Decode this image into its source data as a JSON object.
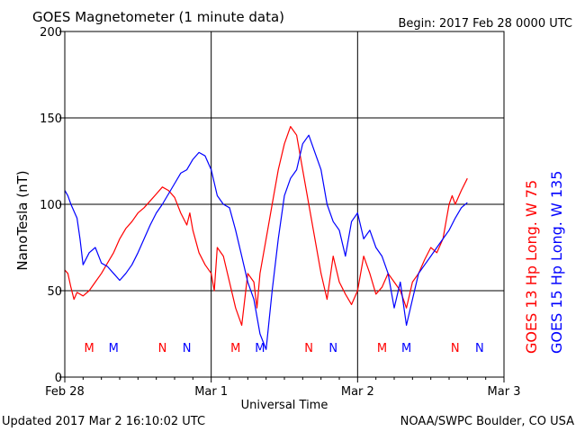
{
  "header": {
    "title": "GOES Magnetometer (1 minute data)",
    "begin": "Begin:  2017 Feb 28 0000 UTC"
  },
  "footer": {
    "updated": "Updated 2017 Mar  2 16:10:02 UTC",
    "credit": "NOAA/SWPC Boulder, CO USA"
  },
  "chart_data": {
    "type": "line",
    "title": "GOES Magnetometer (1 minute data)",
    "xlabel": "Universal Time",
    "ylabel": "NanoTesla (nT)",
    "xlim": [
      0,
      72
    ],
    "ylim": [
      0,
      200
    ],
    "x_unit": "hours since 2017-02-28 00:00 UTC",
    "x_ticks": [
      {
        "value": 0,
        "label": "Feb 28"
      },
      {
        "value": 24,
        "label": "Mar 1"
      },
      {
        "value": 48,
        "label": "Mar 2"
      },
      {
        "value": 72,
        "label": "Mar 3"
      }
    ],
    "y_ticks": [
      0,
      50,
      100,
      150,
      200
    ],
    "grid": true,
    "series": [
      {
        "name": "GOES 13 Hp",
        "legend": "GOES 13 Hp  Long. W 75",
        "color": "#ff0000",
        "x": [
          0,
          0.5,
          1,
          1.5,
          2,
          3,
          4,
          5,
          6,
          7,
          8,
          9,
          10,
          11,
          12,
          13,
          14,
          15,
          16,
          17,
          18,
          19,
          20,
          20.5,
          21,
          22,
          23,
          24,
          24.5,
          25,
          26,
          27,
          28,
          29,
          30,
          31,
          31.5,
          32,
          33,
          34,
          35,
          36,
          37,
          38,
          39,
          40,
          41,
          42,
          43,
          44,
          45,
          46,
          47,
          48,
          49,
          50,
          51,
          52,
          53,
          54,
          55,
          56,
          57,
          58,
          59,
          60,
          61,
          62,
          62.5,
          63,
          63.5,
          64,
          65,
          66
        ],
        "y": [
          62,
          60,
          52,
          45,
          49,
          47,
          50,
          55,
          60,
          66,
          72,
          80,
          86,
          90,
          95,
          98,
          102,
          106,
          110,
          108,
          104,
          95,
          88,
          95,
          85,
          72,
          65,
          60,
          50,
          75,
          70,
          55,
          40,
          30,
          60,
          55,
          40,
          60,
          80,
          100,
          120,
          135,
          145,
          140,
          120,
          100,
          80,
          60,
          45,
          70,
          55,
          48,
          42,
          50,
          70,
          60,
          48,
          52,
          60,
          55,
          50,
          40,
          55,
          60,
          68,
          75,
          72,
          80,
          90,
          100,
          105,
          100,
          108,
          115
        ],
        "period_markers": [
          {
            "label": "M",
            "x": 4
          },
          {
            "label": "N",
            "x": 16
          },
          {
            "label": "M",
            "x": 28
          },
          {
            "label": "N",
            "x": 40
          },
          {
            "label": "M",
            "x": 52
          },
          {
            "label": "N",
            "x": 64
          }
        ]
      },
      {
        "name": "GOES 15 Hp",
        "legend": "GOES 15 Hp  Long. W 135",
        "color": "#0000ff",
        "x": [
          0,
          0.5,
          1,
          2,
          2.5,
          3,
          4,
          5,
          6,
          7,
          8,
          9,
          10,
          11,
          12,
          13,
          14,
          15,
          16,
          17,
          18,
          19,
          20,
          21,
          22,
          23,
          24,
          25,
          26,
          27,
          28,
          29,
          30,
          31,
          32,
          33,
          34,
          35,
          36,
          37,
          38,
          39,
          40,
          41,
          42,
          43,
          44,
          45,
          46,
          47,
          48,
          49,
          50,
          51,
          52,
          53,
          54,
          55,
          56,
          57,
          58,
          59,
          60,
          61,
          62,
          63,
          64,
          65,
          66
        ],
        "y": [
          108,
          105,
          100,
          92,
          80,
          65,
          72,
          75,
          66,
          64,
          60,
          56,
          60,
          65,
          72,
          80,
          88,
          95,
          100,
          106,
          112,
          118,
          120,
          126,
          130,
          128,
          120,
          105,
          100,
          98,
          85,
          70,
          55,
          45,
          25,
          16,
          50,
          80,
          105,
          115,
          120,
          135,
          140,
          130,
          120,
          100,
          90,
          85,
          70,
          90,
          95,
          80,
          85,
          75,
          70,
          60,
          40,
          55,
          30,
          45,
          60,
          65,
          70,
          75,
          80,
          85,
          92,
          98,
          101
        ],
        "period_markers": [
          {
            "label": "M",
            "x": 8
          },
          {
            "label": "N",
            "x": 20
          },
          {
            "label": "M",
            "x": 32
          },
          {
            "label": "N",
            "x": 44
          },
          {
            "label": "M",
            "x": 56
          },
          {
            "label": "N",
            "x": 68
          }
        ]
      }
    ]
  }
}
